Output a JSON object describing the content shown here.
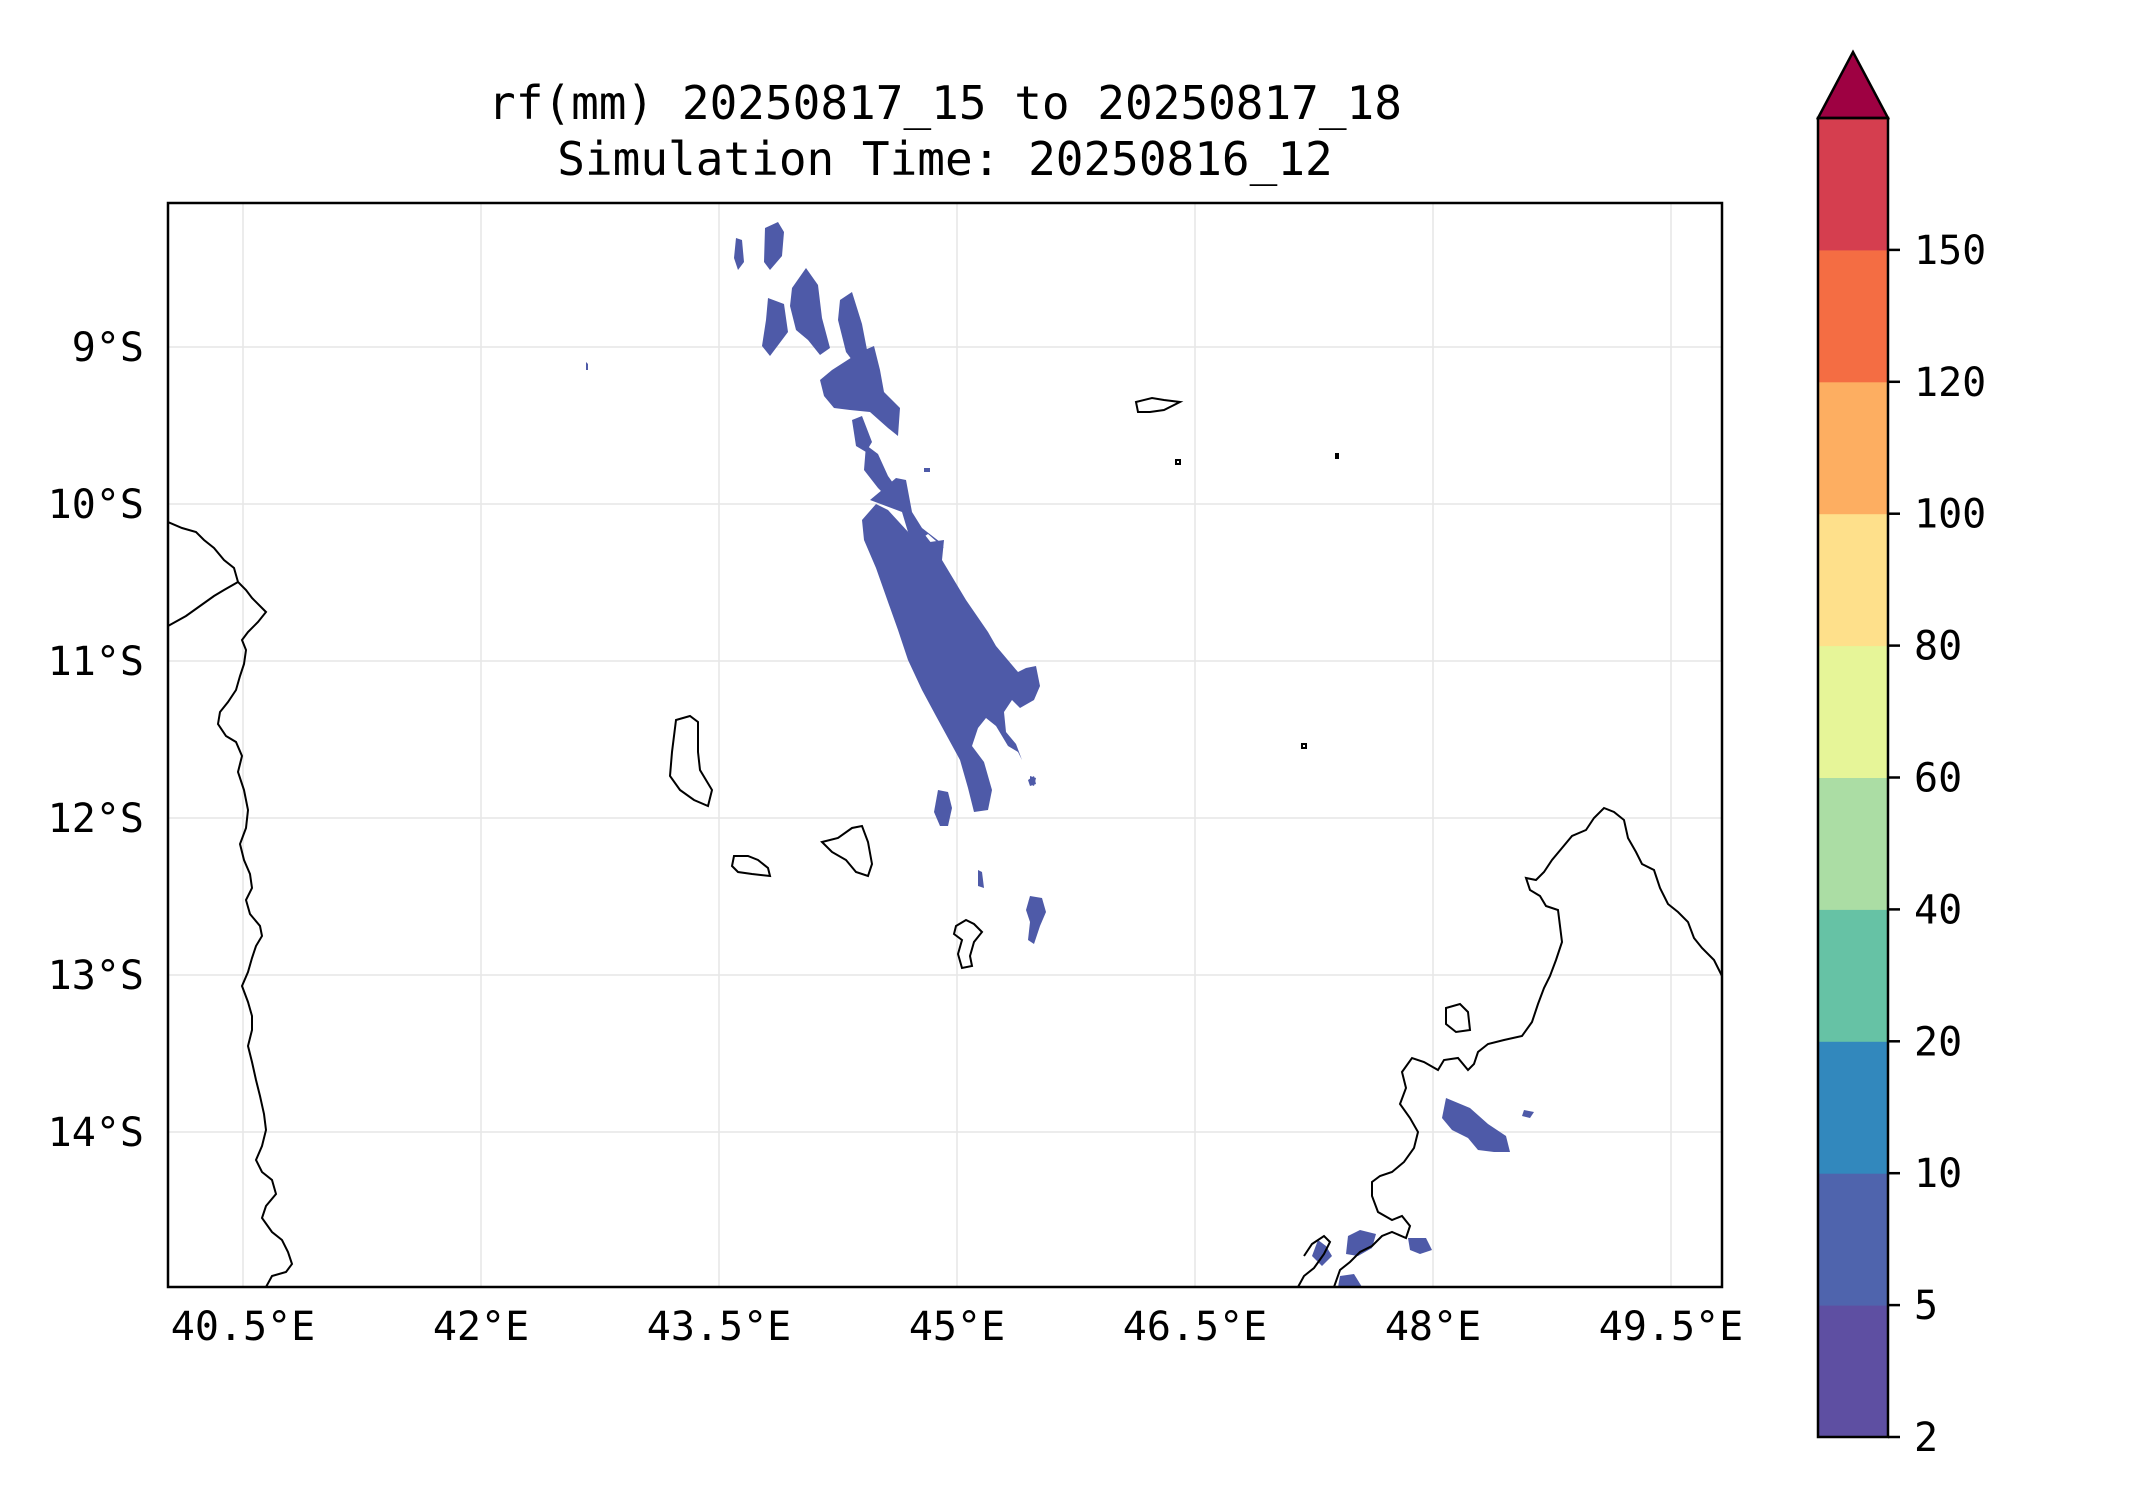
{
  "title": {
    "line1": "rf(mm) 20250817_15 to 20250817_18",
    "line2": "Simulation Time: 20250816_12"
  },
  "map": {
    "variable": "rf(mm)",
    "lon_range": [
      40.0,
      50.0
    ],
    "lat_range": [
      -15.0,
      -8.0
    ],
    "grid": true,
    "x_ticks": [
      {
        "lon": 40.5,
        "label": "40.5°E"
      },
      {
        "lon": 42.0,
        "label": "42°E"
      },
      {
        "lon": 43.5,
        "label": "43.5°E"
      },
      {
        "lon": 45.0,
        "label": "45°E"
      },
      {
        "lon": 46.5,
        "label": "46.5°E"
      },
      {
        "lon": 48.0,
        "label": "48°E"
      },
      {
        "lon": 49.5,
        "label": "49.5°E"
      }
    ],
    "y_ticks": [
      {
        "lat": -9,
        "label": "9°S"
      },
      {
        "lat": -10,
        "label": "10°S"
      },
      {
        "lat": -11,
        "label": "11°S"
      },
      {
        "lat": -12,
        "label": "12°S"
      },
      {
        "lat": -13,
        "label": "13°S"
      },
      {
        "lat": -14,
        "label": "14°S"
      }
    ]
  },
  "colorbar": {
    "levels": [
      "2",
      "5",
      "10",
      "20",
      "40",
      "60",
      "80",
      "100",
      "120",
      "150"
    ],
    "colors": [
      "#5e4fa2",
      "#4f64ad",
      "#3288bd",
      "#66c2a5",
      "#abdda4",
      "#e6f598",
      "#fee08b",
      "#fdae61",
      "#f46d43",
      "#d53e4f"
    ],
    "extend_color": "#9e0142",
    "extend": "max"
  },
  "rain_color": "#4e5aa8"
}
